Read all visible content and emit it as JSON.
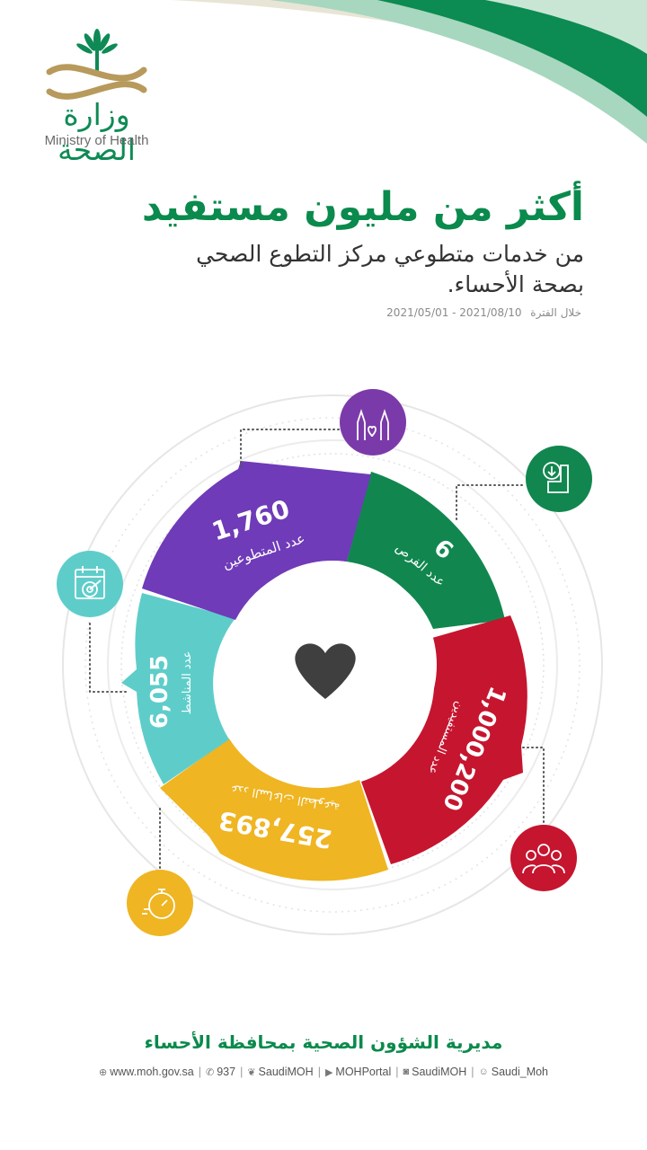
{
  "logo": {
    "arabic": "وزارة الصحة",
    "english": "Ministry of Health"
  },
  "headline": "أكثر من مليون مستفيد",
  "subline_1": "من خدمات متطوعي مركز التطوع الصحي",
  "subline_2": "بصحة الأحساء.",
  "period": {
    "label": "خلال الفترة",
    "range": "2021/05/01 - 2021/08/10"
  },
  "segments": [
    {
      "key": "volunteers",
      "value": "1,760",
      "label": "عدد المتطوعين",
      "color": "#6f3bb8",
      "icon": "raised-hands-icon"
    },
    {
      "key": "opportunities",
      "value": "6",
      "label": "عدد الفرص",
      "color": "#11874f",
      "icon": "pie-chart-icon"
    },
    {
      "key": "beneficiaries",
      "value": "1,000,200",
      "label": "عدد المستفيدين",
      "color": "#c6152f",
      "icon": "people-group-icon"
    },
    {
      "key": "hours",
      "value": "257,893",
      "label": "عدد الساعات التطوعية",
      "color": "#efb522",
      "icon": "stopwatch-icon"
    },
    {
      "key": "activities",
      "value": "6,055",
      "label": "عدد المناشط",
      "color": "#5ecdca",
      "icon": "target-calendar-icon"
    }
  ],
  "center_icon": "heart-icon",
  "footer": {
    "title": "مديرية الشؤون الصحية بمحافظة الأحساء",
    "links": [
      {
        "icon": "globe-icon",
        "text": "www.moh.gov.sa"
      },
      {
        "icon": "phone-icon",
        "text": "937"
      },
      {
        "icon": "twitter-icon",
        "text": "SaudiMOH"
      },
      {
        "icon": "youtube-icon",
        "text": "MOHPortal"
      },
      {
        "icon": "instagram-icon",
        "text": "SaudiMOH"
      },
      {
        "icon": "snapchat-icon",
        "text": "Saudi_Moh"
      }
    ]
  }
}
